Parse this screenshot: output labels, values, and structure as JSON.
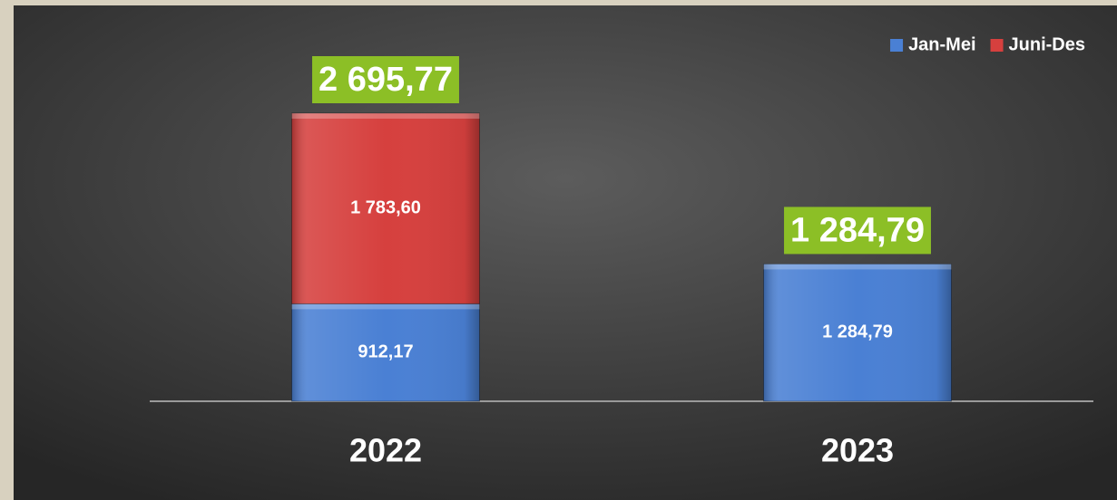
{
  "chart_data": {
    "type": "stacked_bar",
    "categories": [
      "2022",
      "2023"
    ],
    "series": [
      {
        "name": "Jan-Mei",
        "color": "#4a80d4",
        "values": [
          912.17,
          1284.79
        ],
        "value_labels": [
          "912,17",
          "1 284,79"
        ]
      },
      {
        "name": "Juni-Des",
        "color": "#d6403e",
        "values": [
          1783.6,
          null
        ],
        "value_labels": [
          "1 783,60",
          null
        ]
      }
    ],
    "totals": [
      2695.77,
      1284.79
    ],
    "total_labels": [
      "2 695,77",
      "1 284,79"
    ],
    "total_label_color": "#8cbf26",
    "legend": "top-right"
  }
}
